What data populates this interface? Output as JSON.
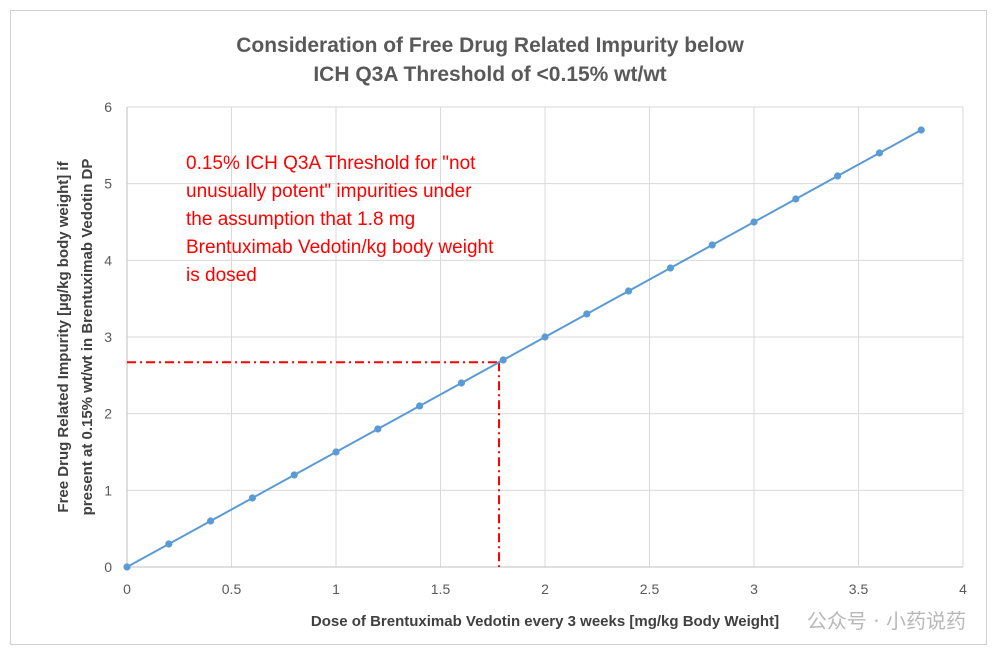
{
  "chart_data": {
    "type": "scatter",
    "title_lines": [
      "Consideration of Free Drug Related Impurity below",
      "ICH Q3A Threshold of <0.15% wt/wt"
    ],
    "xlabel": "Dose of Brentuximab Vedotin every 3 weeks [mg/kg Body Weight]",
    "ylabel_lines": [
      "Free Drug Related Impurity [µg/kg body weight] if",
      "present at 0.15% wt/wt in Brentuximab Vedotin DP"
    ],
    "xlim": [
      0,
      4
    ],
    "ylim": [
      0,
      6
    ],
    "xticks": [
      "0",
      "0.5",
      "1",
      "1.5",
      "2",
      "2.5",
      "3",
      "3.5",
      "4"
    ],
    "yticks": [
      "0",
      "1",
      "2",
      "3",
      "4",
      "5",
      "6"
    ],
    "grid": true,
    "series": [
      {
        "color": "#5b9bd5",
        "x": [
          0,
          0.2,
          0.4,
          0.6,
          0.8,
          1.0,
          1.2,
          1.4,
          1.6,
          1.8,
          2.0,
          2.2,
          2.4,
          2.6,
          2.8,
          3.0,
          3.2,
          3.4,
          3.6,
          3.8
        ],
        "y": [
          0,
          0.3,
          0.6,
          0.9,
          1.2,
          1.5,
          1.8,
          2.1,
          2.4,
          2.7,
          3.0,
          3.3,
          3.6,
          3.9,
          4.2,
          4.5,
          4.8,
          5.1,
          5.4,
          5.7
        ]
      }
    ],
    "reference_point": {
      "x": 1.78,
      "y": 2.67,
      "color": "#ff0000"
    },
    "annotation_lines": [
      "0.15% ICH Q3A Threshold for \"not",
      "unusually potent\" impurities under",
      "the assumption that 1.8 mg",
      "Brentuximab Vedotin/kg body weight",
      "is dosed"
    ],
    "annotation_color": "#ff0000"
  },
  "watermark": "公众号 · 小药说药"
}
